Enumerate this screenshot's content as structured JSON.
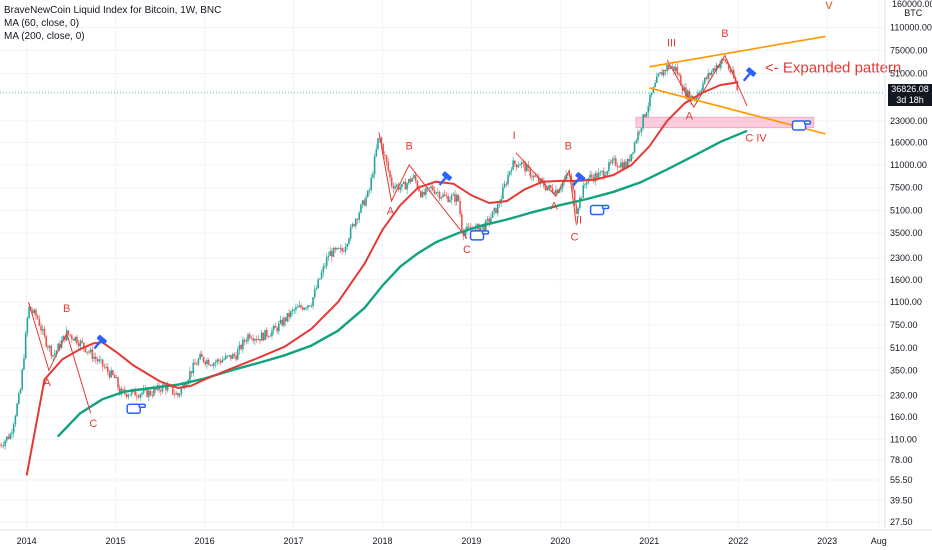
{
  "legend": {
    "title": "BraveNewCoin Liquid Index for Bitcoin, 1W, BNC",
    "ma1": "MA (60, close, 0)",
    "ma2": "MA (200, close, 0)"
  },
  "price_tag": {
    "price": "36826.08",
    "countdown": "3d 18h"
  },
  "unit_label": {
    "line1": "160000.00",
    "line2": "BTC"
  },
  "colors": {
    "up": "#26a69a",
    "down": "#ef5350",
    "ma60": "#e53935",
    "ma200": "#10a37f",
    "channel": "#ff9800",
    "zone": "#f8bbd0",
    "wave_label": "#e53935"
  },
  "chart_data": {
    "type": "candlestick",
    "yscale": "log",
    "ylim": [
      24,
      175000
    ],
    "xlim": [
      2013.7,
      2023.65
    ],
    "y_ticks": [
      27.5,
      39.5,
      55.5,
      78,
      110,
      160,
      230,
      350,
      510,
      750,
      1100,
      1600,
      2300,
      3500,
      5100,
      7500,
      11000,
      16000,
      23000,
      36826.08,
      51000,
      75000,
      110000
    ],
    "y_tick_labels": [
      "27.50",
      "39.50",
      "55.50",
      "78.00",
      "110.00",
      "160.00",
      "230.00",
      "350.00",
      "510.00",
      "750.00",
      "1100.00",
      "1600.00",
      "2300.00",
      "3500.00",
      "5100.00",
      "7500.00",
      "11000.00",
      "16000.00",
      "23000.00",
      "",
      "51000.00",
      "75000.00",
      "110000.00"
    ],
    "x_ticks": [
      2014,
      2015,
      2016,
      2017,
      2018,
      2019,
      2020,
      2021,
      2022,
      2023,
      2023.58
    ],
    "x_tick_labels": [
      "2014",
      "2015",
      "2016",
      "2017",
      "2018",
      "2019",
      "2020",
      "2021",
      "2022",
      "2023",
      "Aug"
    ],
    "price_keypoints": [
      [
        2013.7,
        100
      ],
      [
        2013.82,
        120
      ],
      [
        2013.93,
        250
      ],
      [
        2014.02,
        1000
      ],
      [
        2014.12,
        850
      ],
      [
        2014.2,
        600
      ],
      [
        2014.3,
        450
      ],
      [
        2014.45,
        650
      ],
      [
        2014.55,
        600
      ],
      [
        2014.7,
        480
      ],
      [
        2014.85,
        380
      ],
      [
        2015.0,
        300
      ],
      [
        2015.05,
        240
      ],
      [
        2015.2,
        240
      ],
      [
        2015.4,
        240
      ],
      [
        2015.55,
        270
      ],
      [
        2015.7,
        230
      ],
      [
        2015.85,
        350
      ],
      [
        2015.95,
        430
      ],
      [
        2016.1,
        400
      ],
      [
        2016.35,
        450
      ],
      [
        2016.5,
        650
      ],
      [
        2016.6,
        600
      ],
      [
        2016.8,
        700
      ],
      [
        2017.0,
        950
      ],
      [
        2017.2,
        1100
      ],
      [
        2017.4,
        2500
      ],
      [
        2017.55,
        2600
      ],
      [
        2017.7,
        4500
      ],
      [
        2017.85,
        7000
      ],
      [
        2017.96,
        18000
      ],
      [
        2018.05,
        11000
      ],
      [
        2018.1,
        8000
      ],
      [
        2018.22,
        7500
      ],
      [
        2018.35,
        9000
      ],
      [
        2018.45,
        6500
      ],
      [
        2018.55,
        7500
      ],
      [
        2018.7,
        6400
      ],
      [
        2018.85,
        6300
      ],
      [
        2018.9,
        3600
      ],
      [
        2019.0,
        3700
      ],
      [
        2019.15,
        3900
      ],
      [
        2019.3,
        5500
      ],
      [
        2019.45,
        11000
      ],
      [
        2019.55,
        11500
      ],
      [
        2019.7,
        9000
      ],
      [
        2019.85,
        7500
      ],
      [
        2019.96,
        7200
      ],
      [
        2020.1,
        9500
      ],
      [
        2020.18,
        5200
      ],
      [
        2020.3,
        8800
      ],
      [
        2020.45,
        9300
      ],
      [
        2020.6,
        11500
      ],
      [
        2020.75,
        11000
      ],
      [
        2020.87,
        18500
      ],
      [
        2021.0,
        32000
      ],
      [
        2021.1,
        48000
      ],
      [
        2021.2,
        57000
      ],
      [
        2021.3,
        55000
      ],
      [
        2021.4,
        37000
      ],
      [
        2021.5,
        33000
      ],
      [
        2021.62,
        45000
      ],
      [
        2021.75,
        58000
      ],
      [
        2021.85,
        64000
      ],
      [
        2021.95,
        47000
      ],
      [
        2022.0,
        36826
      ]
    ],
    "ma60": [
      [
        2014.0,
        60
      ],
      [
        2014.2,
        300
      ],
      [
        2014.4,
        420
      ],
      [
        2014.6,
        500
      ],
      [
        2014.75,
        550
      ],
      [
        2014.85,
        560
      ],
      [
        2015.0,
        480
      ],
      [
        2015.2,
        380
      ],
      [
        2015.5,
        290
      ],
      [
        2015.7,
        260
      ],
      [
        2015.85,
        270
      ],
      [
        2016.0,
        300
      ],
      [
        2016.3,
        360
      ],
      [
        2016.6,
        430
      ],
      [
        2016.9,
        520
      ],
      [
        2017.2,
        700
      ],
      [
        2017.5,
        1100
      ],
      [
        2017.8,
        2100
      ],
      [
        2018.0,
        3700
      ],
      [
        2018.2,
        5600
      ],
      [
        2018.4,
        7500
      ],
      [
        2018.6,
        8300
      ],
      [
        2018.8,
        8000
      ],
      [
        2019.0,
        6600
      ],
      [
        2019.2,
        5800
      ],
      [
        2019.4,
        6000
      ],
      [
        2019.6,
        7300
      ],
      [
        2019.8,
        8300
      ],
      [
        2020.0,
        8400
      ],
      [
        2020.2,
        8400
      ],
      [
        2020.4,
        8600
      ],
      [
        2020.6,
        9300
      ],
      [
        2020.8,
        11000
      ],
      [
        2021.0,
        15000
      ],
      [
        2021.2,
        23000
      ],
      [
        2021.4,
        31000
      ],
      [
        2021.6,
        37000
      ],
      [
        2021.8,
        42000
      ],
      [
        2022.0,
        44000
      ]
    ],
    "ma200": [
      [
        2014.35,
        115
      ],
      [
        2014.6,
        170
      ],
      [
        2014.85,
        215
      ],
      [
        2015.1,
        245
      ],
      [
        2015.4,
        260
      ],
      [
        2015.7,
        275
      ],
      [
        2016.0,
        305
      ],
      [
        2016.3,
        350
      ],
      [
        2016.6,
        395
      ],
      [
        2016.9,
        450
      ],
      [
        2017.2,
        530
      ],
      [
        2017.5,
        680
      ],
      [
        2017.8,
        1000
      ],
      [
        2018.0,
        1450
      ],
      [
        2018.2,
        2000
      ],
      [
        2018.4,
        2500
      ],
      [
        2018.6,
        3000
      ],
      [
        2018.85,
        3500
      ],
      [
        2019.1,
        3950
      ],
      [
        2019.4,
        4400
      ],
      [
        2019.7,
        5000
      ],
      [
        2020.0,
        5600
      ],
      [
        2020.3,
        6200
      ],
      [
        2020.6,
        7000
      ],
      [
        2020.9,
        8200
      ],
      [
        2021.2,
        10200
      ],
      [
        2021.5,
        12800
      ],
      [
        2021.8,
        16200
      ],
      [
        2022.1,
        19500
      ]
    ],
    "elliott_zigzags": [
      [
        [
          2014.02,
          1100
        ],
        [
          2014.25,
          350
        ],
        [
          2014.45,
          650
        ],
        [
          2014.72,
          170
        ]
      ],
      [
        [
          2017.96,
          19000
        ],
        [
          2018.1,
          6000
        ],
        [
          2018.3,
          11000
        ],
        [
          2018.95,
          3200
        ]
      ],
      [
        [
          2019.5,
          13500
        ],
        [
          2019.95,
          6500
        ],
        [
          2020.1,
          10000
        ],
        [
          2020.18,
          4000
        ]
      ],
      [
        [
          2021.2,
          64000
        ],
        [
          2021.5,
          29000
        ],
        [
          2021.85,
          69000
        ],
        [
          2022.1,
          29500
        ]
      ]
    ],
    "channel_lines": [
      [
        [
          2021.0,
          57000
        ],
        [
          2022.98,
          95000
        ]
      ],
      [
        [
          2021.0,
          40000
        ],
        [
          2022.98,
          18500
        ]
      ]
    ],
    "target_zone": {
      "x": [
        2020.85,
        2022.85
      ],
      "y": [
        20500,
        24500
      ]
    },
    "wave_labels": [
      {
        "text": "A",
        "x": 2014.23,
        "y": 270
      },
      {
        "text": "B",
        "x": 2014.45,
        "y": 930
      },
      {
        "text": "C",
        "x": 2014.75,
        "y": 135
      },
      {
        "text": "A",
        "x": 2018.09,
        "y": 4800
      },
      {
        "text": "B",
        "x": 2018.3,
        "y": 14200
      },
      {
        "text": "C",
        "x": 2018.95,
        "y": 2500
      },
      {
        "text": "I",
        "x": 2019.48,
        "y": 17000
      },
      {
        "text": "A",
        "x": 2019.93,
        "y": 5200
      },
      {
        "text": "B",
        "x": 2020.09,
        "y": 14200
      },
      {
        "text": "C",
        "x": 2020.16,
        "y": 3100
      },
      {
        "text": "II",
        "x": 2020.21,
        "y": 4100
      },
      {
        "text": "III",
        "x": 2021.25,
        "y": 80000
      },
      {
        "text": "A",
        "x": 2021.45,
        "y": 23500
      },
      {
        "text": "B",
        "x": 2021.85,
        "y": 94000
      },
      {
        "text": "C IV",
        "x": 2022.2,
        "y": 16300
      }
    ],
    "wave_label_v": {
      "text": "V",
      "x": 2023.02,
      "y": 150000
    },
    "annotation": {
      "text": "<- Expanded pattern",
      "x": 2022.3,
      "y": 52000
    },
    "marker_points": [
      {
        "type": "hammer",
        "x": 2014.82,
        "y": 560
      },
      {
        "type": "hammer",
        "x": 2018.7,
        "y": 8700
      },
      {
        "type": "hammer",
        "x": 2020.2,
        "y": 8600
      },
      {
        "type": "hammer",
        "x": 2022.12,
        "y": 50000
      },
      {
        "type": "hand",
        "x": 2015.22,
        "y": 185
      },
      {
        "type": "hand",
        "x": 2019.08,
        "y": 3400
      },
      {
        "type": "hand",
        "x": 2020.43,
        "y": 5200
      },
      {
        "type": "hand",
        "x": 2022.7,
        "y": 21500
      }
    ],
    "current_price": 36826.08
  }
}
